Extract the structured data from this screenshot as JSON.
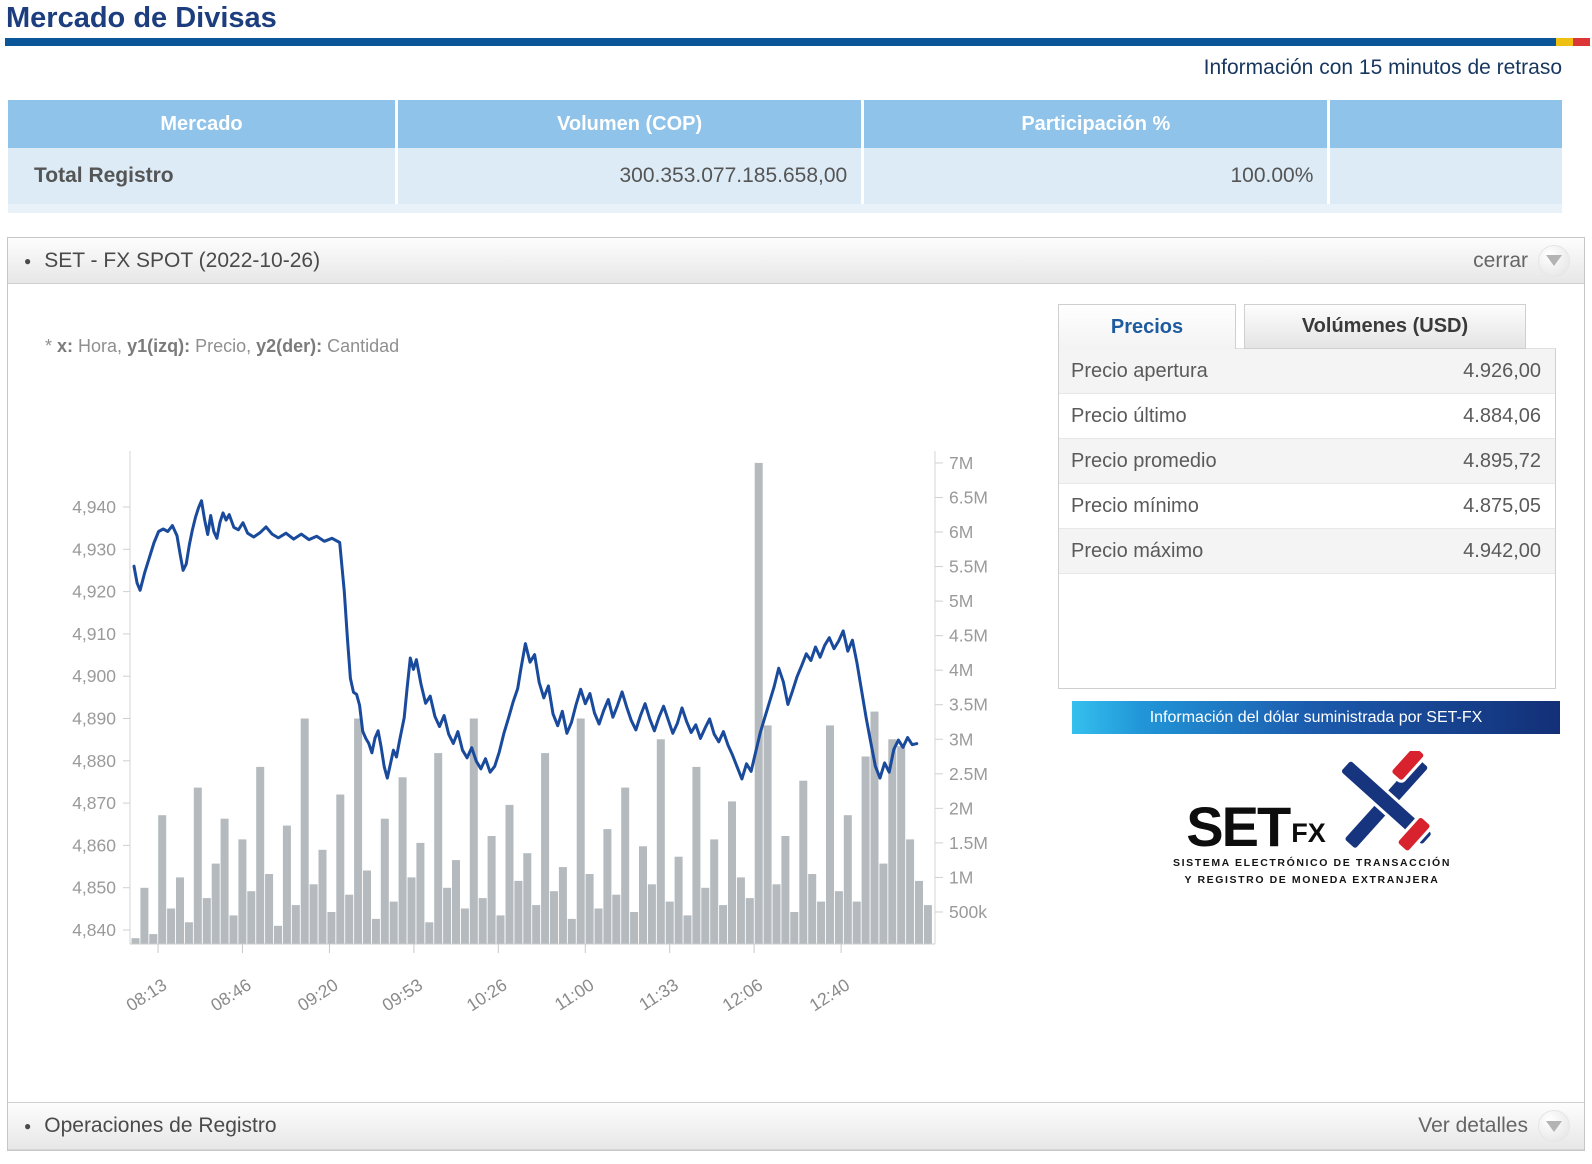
{
  "header": {
    "title": "Mercado de Divisas",
    "delay_notice": "Información con 15 minutos de retraso"
  },
  "colors": {
    "accent_blue": "#0a5699",
    "flag_yellow": "#efbf12",
    "flag_red": "#dd3636",
    "table_header_bg": "#8fc3e9",
    "table_row_bg": "#dcebf5",
    "title_text": "#1c3e7e",
    "banner_from": "#35c0ee",
    "banner_to": "#132f77",
    "price_line": "#1a4a9c",
    "volume_bars": "#b4babd",
    "active_tab_text": "#1d5a9e"
  },
  "market_table": {
    "headers": [
      "Mercado",
      "Volumen (COP)",
      "Participación %",
      ""
    ],
    "row": {
      "mercado": "Total Registro",
      "volumen": "300.353.077.185.658,00",
      "participacion": "100.00%"
    }
  },
  "fx_panel": {
    "title": "SET - FX SPOT (2022-10-26)",
    "close_label": "cerrar",
    "note_parts": [
      {
        "text": "* ",
        "bold": false
      },
      {
        "text": "x:",
        "bold": true
      },
      {
        "text": " Hora, ",
        "bold": false
      },
      {
        "text": "y1(izq):",
        "bold": true
      },
      {
        "text": " Precio, ",
        "bold": false
      },
      {
        "text": "y2(der):",
        "bold": true
      },
      {
        "text": " Cantidad",
        "bold": false
      }
    ],
    "tabs": [
      {
        "label": "Precios",
        "active": true
      },
      {
        "label": "Volúmenes (USD)",
        "active": false
      }
    ],
    "price_table": {
      "rows": [
        [
          "Precio apertura",
          "4.926,00"
        ],
        [
          "Precio último",
          "4.884,06"
        ],
        [
          "Precio promedio",
          "4.895,72"
        ],
        [
          "Precio mínimo",
          "4.875,05"
        ],
        [
          "Precio máximo",
          "4.942,00"
        ]
      ]
    },
    "banner_text": "Información del dólar suministrada por SET-FX",
    "logo": {
      "set": "SET",
      "fx": "FX",
      "tagline1": "SISTEMA ELECTRÓNICO DE TRANSACCIÓN",
      "tagline2": "Y REGISTRO DE MONEDA EXTRANJERA"
    }
  },
  "footer_panel": {
    "title": "Operaciones de Registro",
    "action_label": "Ver detalles"
  },
  "chart_data": {
    "type": "line",
    "description": "Intraday USD/COP: price line on left axis (Precio), traded quantity bars on right axis (Cantidad), x = hour of day",
    "xlabel": "Hora",
    "y1label": "Precio",
    "y2label": "Cantidad",
    "x_range_hours": [
      8.03,
      13.28
    ],
    "y1_range": [
      4836,
      4953
    ],
    "y2_range_millions": [
      0,
      7.2
    ],
    "grid": false,
    "x_ticks": [
      [
        8.2167,
        "08:13"
      ],
      [
        8.7667,
        "08:46"
      ],
      [
        9.3333,
        "09:20"
      ],
      [
        9.8833,
        "09:53"
      ],
      [
        10.4333,
        "10:26"
      ],
      [
        11.0,
        "11:00"
      ],
      [
        11.55,
        "11:33"
      ],
      [
        12.1,
        "12:06"
      ],
      [
        12.6667,
        "12:40"
      ]
    ],
    "y1_ticks": [
      [
        4840,
        "4,840"
      ],
      [
        4850,
        "4,850"
      ],
      [
        4860,
        "4,860"
      ],
      [
        4870,
        "4,870"
      ],
      [
        4880,
        "4,880"
      ],
      [
        4890,
        "4,890"
      ],
      [
        4900,
        "4,900"
      ],
      [
        4910,
        "4,910"
      ],
      [
        4920,
        "4,920"
      ],
      [
        4930,
        "4,930"
      ],
      [
        4940,
        "4,940"
      ]
    ],
    "y2_ticks": [
      [
        0.5,
        "500k"
      ],
      [
        1,
        "1M"
      ],
      [
        1.5,
        "1.5M"
      ],
      [
        2,
        "2M"
      ],
      [
        2.5,
        "2.5M"
      ],
      [
        3,
        "3M"
      ],
      [
        3.5,
        "3.5M"
      ],
      [
        4,
        "4M"
      ],
      [
        4.5,
        "4.5M"
      ],
      [
        5,
        "5M"
      ],
      [
        5.5,
        "5.5M"
      ],
      [
        6,
        "6M"
      ],
      [
        6.5,
        "6.5M"
      ],
      [
        7,
        "7M"
      ]
    ],
    "price_line": {
      "name": "Precio",
      "color": "#1a4a9c",
      "points": [
        [
          8.06,
          4926
        ],
        [
          8.08,
          4922
        ],
        [
          8.1,
          4920.3
        ],
        [
          8.13,
          4924.5
        ],
        [
          8.16,
          4928
        ],
        [
          8.19,
          4931.5
        ],
        [
          8.22,
          4934.2
        ],
        [
          8.25,
          4934.8
        ],
        [
          8.28,
          4934.2
        ],
        [
          8.31,
          4935.6
        ],
        [
          8.34,
          4933.2
        ],
        [
          8.36,
          4929
        ],
        [
          8.38,
          4925
        ],
        [
          8.4,
          4926.5
        ],
        [
          8.42,
          4931
        ],
        [
          8.44,
          4934.5
        ],
        [
          8.46,
          4937.5
        ],
        [
          8.48,
          4939.8
        ],
        [
          8.5,
          4941.5
        ],
        [
          8.52,
          4937
        ],
        [
          8.54,
          4933.5
        ],
        [
          8.56,
          4938
        ],
        [
          8.58,
          4934.2
        ],
        [
          8.6,
          4932.6
        ],
        [
          8.62,
          4936.4
        ],
        [
          8.64,
          4938.6
        ],
        [
          8.66,
          4936.9
        ],
        [
          8.68,
          4938.2
        ],
        [
          8.71,
          4935.2
        ],
        [
          8.74,
          4934.6
        ],
        [
          8.77,
          4936.3
        ],
        [
          8.8,
          4933.8
        ],
        [
          8.84,
          4932.9
        ],
        [
          8.88,
          4933.9
        ],
        [
          8.92,
          4935.3
        ],
        [
          8.96,
          4933.6
        ],
        [
          9.0,
          4932.7
        ],
        [
          9.05,
          4933.8
        ],
        [
          9.1,
          4932.4
        ],
        [
          9.15,
          4933.6
        ],
        [
          9.2,
          4932.3
        ],
        [
          9.25,
          4933.1
        ],
        [
          9.3,
          4931.9
        ],
        [
          9.35,
          4932.6
        ],
        [
          9.4,
          4931.6
        ],
        [
          9.43,
          4920
        ],
        [
          9.45,
          4909
        ],
        [
          9.47,
          4899.5
        ],
        [
          9.49,
          4896.2
        ],
        [
          9.51,
          4895.7
        ],
        [
          9.53,
          4893.1
        ],
        [
          9.55,
          4887
        ],
        [
          9.57,
          4885.3
        ],
        [
          9.59,
          4884.1
        ],
        [
          9.61,
          4881.9
        ],
        [
          9.63,
          4885.4
        ],
        [
          9.65,
          4887.1
        ],
        [
          9.67,
          4883.3
        ],
        [
          9.69,
          4878.6
        ],
        [
          9.71,
          4875.9
        ],
        [
          9.73,
          4879.1
        ],
        [
          9.75,
          4882.5
        ],
        [
          9.77,
          4880.9
        ],
        [
          9.79,
          4884.7
        ],
        [
          9.82,
          4890.2
        ],
        [
          9.84,
          4897.4
        ],
        [
          9.86,
          4904.3
        ],
        [
          9.88,
          4901.6
        ],
        [
          9.9,
          4903.9
        ],
        [
          9.93,
          4898.1
        ],
        [
          9.96,
          4893.6
        ],
        [
          9.99,
          4895.3
        ],
        [
          10.02,
          4890.5
        ],
        [
          10.05,
          4888.1
        ],
        [
          10.08,
          4890.7
        ],
        [
          10.11,
          4886.3
        ],
        [
          10.14,
          4884.1
        ],
        [
          10.17,
          4886.9
        ],
        [
          10.2,
          4882.5
        ],
        [
          10.23,
          4880.7
        ],
        [
          10.26,
          4883.1
        ],
        [
          10.29,
          4879.9
        ],
        [
          10.32,
          4878.1
        ],
        [
          10.35,
          4880.5
        ],
        [
          10.38,
          4877.3
        ],
        [
          10.41,
          4878.7
        ],
        [
          10.44,
          4882.1
        ],
        [
          10.47,
          4886.5
        ],
        [
          10.5,
          4890.1
        ],
        [
          10.53,
          4893.9
        ],
        [
          10.56,
          4897.1
        ],
        [
          10.58,
          4901.6
        ],
        [
          10.61,
          4907.7
        ],
        [
          10.64,
          4903.3
        ],
        [
          10.67,
          4905.1
        ],
        [
          10.7,
          4898.5
        ],
        [
          10.73,
          4894.9
        ],
        [
          10.76,
          4897.7
        ],
        [
          10.79,
          4891.1
        ],
        [
          10.82,
          4888.3
        ],
        [
          10.85,
          4891.7
        ],
        [
          10.88,
          4886.5
        ],
        [
          10.91,
          4889.1
        ],
        [
          10.94,
          4893.3
        ],
        [
          10.97,
          4896.9
        ],
        [
          11.0,
          4893.5
        ],
        [
          11.03,
          4895.9
        ],
        [
          11.06,
          4891.3
        ],
        [
          11.09,
          4888.7
        ],
        [
          11.12,
          4891.9
        ],
        [
          11.15,
          4894.5
        ],
        [
          11.18,
          4890.3
        ],
        [
          11.21,
          4893.1
        ],
        [
          11.24,
          4896.3
        ],
        [
          11.27,
          4892.7
        ],
        [
          11.3,
          4889.5
        ],
        [
          11.33,
          4887.3
        ],
        [
          11.36,
          4890.7
        ],
        [
          11.39,
          4893.5
        ],
        [
          11.42,
          4889.9
        ],
        [
          11.45,
          4887.1
        ],
        [
          11.48,
          4890.3
        ],
        [
          11.51,
          4892.9
        ],
        [
          11.54,
          4889.7
        ],
        [
          11.57,
          4886.5
        ],
        [
          11.6,
          4888.9
        ],
        [
          11.63,
          4892.5
        ],
        [
          11.66,
          4889.3
        ],
        [
          11.69,
          4886.7
        ],
        [
          11.72,
          4888.5
        ],
        [
          11.75,
          4885.3
        ],
        [
          11.78,
          4887.7
        ],
        [
          11.81,
          4889.9
        ],
        [
          11.84,
          4886.3
        ],
        [
          11.87,
          4884.5
        ],
        [
          11.9,
          4886.9
        ],
        [
          11.93,
          4883.7
        ],
        [
          11.96,
          4881.3
        ],
        [
          11.99,
          4878.5
        ],
        [
          12.02,
          4875.7
        ],
        [
          12.05,
          4879.3
        ],
        [
          12.08,
          4877.5
        ],
        [
          12.11,
          4882.1
        ],
        [
          12.14,
          4886.7
        ],
        [
          12.17,
          4890.3
        ],
        [
          12.2,
          4893.9
        ],
        [
          12.23,
          4897.5
        ],
        [
          12.26,
          4901.9
        ],
        [
          12.29,
          4898.7
        ],
        [
          12.32,
          4893.3
        ],
        [
          12.35,
          4896.5
        ],
        [
          12.38,
          4899.9
        ],
        [
          12.41,
          4902.5
        ],
        [
          12.44,
          4905.3
        ],
        [
          12.47,
          4903.7
        ],
        [
          12.5,
          4906.9
        ],
        [
          12.53,
          4904.5
        ],
        [
          12.56,
          4907.3
        ],
        [
          12.59,
          4909.1
        ],
        [
          12.62,
          4906.5
        ],
        [
          12.65,
          4908.3
        ],
        [
          12.68,
          4910.7
        ],
        [
          12.71,
          4905.9
        ],
        [
          12.74,
          4908.5
        ],
        [
          12.77,
          4903.1
        ],
        [
          12.8,
          4896.6
        ],
        [
          12.83,
          4890.1
        ],
        [
          12.86,
          4884.3
        ],
        [
          12.89,
          4878.7
        ],
        [
          12.92,
          4875.9
        ],
        [
          12.95,
          4879.5
        ],
        [
          12.98,
          4877.3
        ],
        [
          13.01,
          4882.7
        ],
        [
          13.04,
          4884.9
        ],
        [
          13.07,
          4883.2
        ],
        [
          13.1,
          4885.5
        ],
        [
          13.13,
          4883.8
        ],
        [
          13.16,
          4884.06
        ]
      ]
    },
    "volume_bars": {
      "name": "Cantidad",
      "color": "#b4babd",
      "unit": "millions",
      "start": 8.07,
      "step": 0.058,
      "values": [
        0.12,
        0.85,
        0.18,
        1.9,
        0.55,
        1.0,
        0.35,
        2.3,
        0.7,
        1.2,
        1.85,
        0.45,
        1.55,
        0.8,
        2.6,
        1.05,
        0.3,
        1.75,
        0.6,
        3.3,
        0.9,
        1.4,
        0.5,
        2.2,
        0.75,
        3.3,
        1.1,
        0.4,
        1.85,
        0.65,
        2.45,
        1.0,
        1.5,
        0.35,
        2.8,
        0.85,
        1.25,
        0.55,
        3.3,
        0.7,
        1.6,
        0.45,
        2.05,
        0.95,
        1.35,
        0.6,
        2.8,
        0.8,
        1.15,
        0.4,
        3.3,
        1.05,
        0.55,
        1.7,
        0.75,
        2.3,
        0.5,
        1.45,
        0.9,
        3.0,
        0.65,
        1.3,
        0.45,
        2.6,
        0.85,
        1.55,
        0.6,
        2.1,
        1.0,
        0.7,
        7.0,
        3.2,
        0.9,
        1.6,
        0.5,
        2.4,
        1.05,
        0.65,
        3.2,
        0.8,
        1.9,
        0.65,
        2.75,
        3.4,
        1.2,
        3.0,
        2.9,
        1.55,
        0.95,
        0.6
      ]
    }
  }
}
